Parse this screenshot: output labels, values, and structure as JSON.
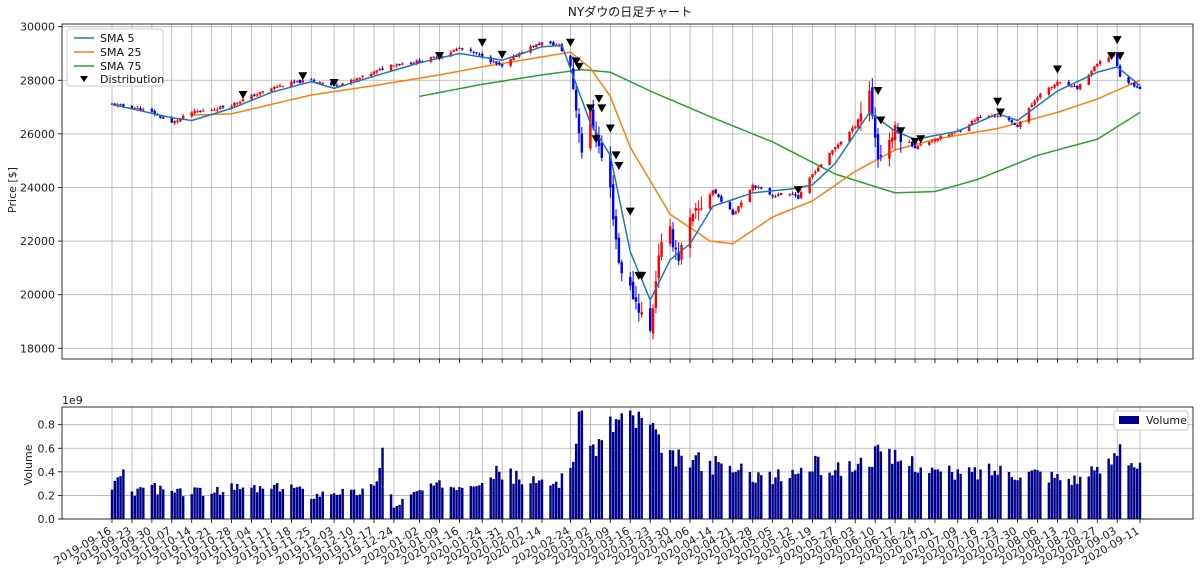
{
  "chart_data": [
    {
      "type": "candlestick",
      "title": "NYダウの日足チャート",
      "ylabel": "Price [$]",
      "ylim": [
        17600,
        30100
      ],
      "yticks": [
        18000,
        20000,
        22000,
        24000,
        26000,
        28000,
        30000
      ],
      "grid": true,
      "legend_position": "top-left",
      "series_names": {
        "sma5": "SMA 5",
        "sma25": "SMA 25",
        "sma75": "SMA 75",
        "distribution": "Distribution"
      },
      "colors": {
        "up": "#ff0000",
        "down": "#0000ff",
        "sma5": "#1f77b4",
        "sma25": "#ff7f0e",
        "sma75": "#2ca02c",
        "distribution": "#000000"
      },
      "close_anchors": [
        [
          "2019-09-16",
          27100
        ],
        [
          "2019-09-23",
          27000
        ],
        [
          "2019-09-30",
          26800
        ],
        [
          "2019-10-07",
          26400
        ],
        [
          "2019-10-14",
          26800
        ],
        [
          "2019-10-21",
          26900
        ],
        [
          "2019-10-28",
          27100
        ],
        [
          "2019-11-04",
          27400
        ],
        [
          "2019-11-11",
          27700
        ],
        [
          "2019-11-18",
          27900
        ],
        [
          "2019-11-25",
          28000
        ],
        [
          "2019-12-03",
          27800
        ],
        [
          "2019-12-10",
          28000
        ],
        [
          "2019-12-17",
          28300
        ],
        [
          "2019-12-24",
          28600
        ],
        [
          "2020-01-02",
          28700
        ],
        [
          "2020-01-09",
          28900
        ],
        [
          "2020-01-16",
          29200
        ],
        [
          "2020-01-24",
          28900
        ],
        [
          "2020-01-31",
          28500
        ],
        [
          "2020-02-07",
          29100
        ],
        [
          "2020-02-14",
          29400
        ],
        [
          "2020-02-20",
          29300
        ],
        [
          "2020-02-24",
          28500
        ],
        [
          "2020-02-28",
          25400
        ],
        [
          "2020-03-02",
          26700
        ],
        [
          "2020-03-09",
          23900
        ],
        [
          "2020-03-12",
          21200
        ],
        [
          "2020-03-16",
          20200
        ],
        [
          "2020-03-23",
          18600
        ],
        [
          "2020-03-26",
          21600
        ],
        [
          "2020-03-30",
          22300
        ],
        [
          "2020-04-02",
          21400
        ],
        [
          "2020-04-06",
          22700
        ],
        [
          "2020-04-14",
          23900
        ],
        [
          "2020-04-21",
          23000
        ],
        [
          "2020-04-28",
          24100
        ],
        [
          "2020-05-05",
          23700
        ],
        [
          "2020-05-12",
          23800
        ],
        [
          "2020-05-14",
          23600
        ],
        [
          "2020-05-19",
          24500
        ],
        [
          "2020-05-27",
          25500
        ],
        [
          "2020-06-03",
          26300
        ],
        [
          "2020-06-08",
          27600
        ],
        [
          "2020-06-11",
          25100
        ],
        [
          "2020-06-17",
          26100
        ],
        [
          "2020-06-24",
          25500
        ],
        [
          "2020-07-01",
          25800
        ],
        [
          "2020-07-09",
          26100
        ],
        [
          "2020-07-16",
          26600
        ],
        [
          "2020-07-23",
          26700
        ],
        [
          "2020-07-30",
          26300
        ],
        [
          "2020-08-06",
          27400
        ],
        [
          "2020-08-13",
          27900
        ],
        [
          "2020-08-20",
          27700
        ],
        [
          "2020-08-27",
          28600
        ],
        [
          "2020-09-02",
          29000
        ],
        [
          "2020-09-04",
          28100
        ],
        [
          "2020-09-11",
          27700
        ]
      ],
      "sma5_anchors": [
        [
          "2019-09-16",
          27100
        ],
        [
          "2019-10-07",
          26600
        ],
        [
          "2019-10-14",
          26500
        ],
        [
          "2019-10-28",
          26950
        ],
        [
          "2019-11-11",
          27550
        ],
        [
          "2019-11-25",
          27950
        ],
        [
          "2019-12-03",
          27700
        ],
        [
          "2019-12-17",
          28150
        ],
        [
          "2020-01-02",
          28650
        ],
        [
          "2020-01-16",
          29000
        ],
        [
          "2020-01-31",
          28750
        ],
        [
          "2020-02-14",
          29250
        ],
        [
          "2020-02-21",
          29300
        ],
        [
          "2020-03-02",
          26400
        ],
        [
          "2020-03-09",
          25200
        ],
        [
          "2020-03-16",
          21600
        ],
        [
          "2020-03-23",
          19800
        ],
        [
          "2020-03-30",
          21300
        ],
        [
          "2020-04-06",
          21900
        ],
        [
          "2020-04-14",
          23300
        ],
        [
          "2020-04-28",
          23800
        ],
        [
          "2020-05-12",
          23950
        ],
        [
          "2020-05-19",
          24100
        ],
        [
          "2020-05-27",
          24900
        ],
        [
          "2020-06-08",
          26800
        ],
        [
          "2020-06-17",
          26100
        ],
        [
          "2020-06-24",
          25800
        ],
        [
          "2020-07-09",
          26100
        ],
        [
          "2020-07-23",
          26750
        ],
        [
          "2020-07-30",
          26500
        ],
        [
          "2020-08-13",
          27600
        ],
        [
          "2020-08-27",
          28300
        ],
        [
          "2020-09-03",
          28500
        ],
        [
          "2020-09-11",
          27800
        ]
      ],
      "sma25_anchors": [
        [
          "2019-10-14",
          26700
        ],
        [
          "2019-10-28",
          26750
        ],
        [
          "2019-11-11",
          27100
        ],
        [
          "2019-11-25",
          27450
        ],
        [
          "2019-12-17",
          27800
        ],
        [
          "2020-01-09",
          28200
        ],
        [
          "2020-01-24",
          28500
        ],
        [
          "2020-02-07",
          28750
        ],
        [
          "2020-02-24",
          29050
        ],
        [
          "2020-03-02",
          28450
        ],
        [
          "2020-03-09",
          27400
        ],
        [
          "2020-03-16",
          25500
        ],
        [
          "2020-03-30",
          23000
        ],
        [
          "2020-04-13",
          22000
        ],
        [
          "2020-04-21",
          21900
        ],
        [
          "2020-05-05",
          22900
        ],
        [
          "2020-05-19",
          23500
        ],
        [
          "2020-06-03",
          24600
        ],
        [
          "2020-06-17",
          25400
        ],
        [
          "2020-07-01",
          25800
        ],
        [
          "2020-07-23",
          26200
        ],
        [
          "2020-08-13",
          26800
        ],
        [
          "2020-08-27",
          27300
        ],
        [
          "2020-09-11",
          28000
        ]
      ],
      "sma75_anchors": [
        [
          "2020-01-02",
          27400
        ],
        [
          "2020-01-24",
          27850
        ],
        [
          "2020-02-14",
          28200
        ],
        [
          "2020-02-28",
          28400
        ],
        [
          "2020-03-09",
          28300
        ],
        [
          "2020-03-23",
          27600
        ],
        [
          "2020-04-14",
          26600
        ],
        [
          "2020-05-05",
          25700
        ],
        [
          "2020-05-27",
          24500
        ],
        [
          "2020-06-17",
          23800
        ],
        [
          "2020-07-01",
          23850
        ],
        [
          "2020-07-16",
          24300
        ],
        [
          "2020-08-06",
          25200
        ],
        [
          "2020-08-27",
          25800
        ],
        [
          "2020-09-11",
          26800
        ]
      ],
      "distribution_days": [
        [
          "2019-11-01",
          27450
        ],
        [
          "2019-11-22",
          28150
        ],
        [
          "2019-12-03",
          27900
        ],
        [
          "2020-01-09",
          28900
        ],
        [
          "2020-01-24",
          29400
        ],
        [
          "2020-01-31",
          28950
        ],
        [
          "2020-02-24",
          29400
        ],
        [
          "2020-02-26",
          28700
        ],
        [
          "2020-02-27",
          28500
        ],
        [
          "2020-03-02",
          26950
        ],
        [
          "2020-03-04",
          25800
        ],
        [
          "2020-03-05",
          27300
        ],
        [
          "2020-03-06",
          26950
        ],
        [
          "2020-03-09",
          26200
        ],
        [
          "2020-03-11",
          25200
        ],
        [
          "2020-03-12",
          24800
        ],
        [
          "2020-03-16",
          23100
        ],
        [
          "2020-03-19",
          20700
        ],
        [
          "2020-03-20",
          20700
        ],
        [
          "2020-05-14",
          23900
        ],
        [
          "2020-06-11",
          27600
        ],
        [
          "2020-06-12",
          26500
        ],
        [
          "2020-06-19",
          26100
        ],
        [
          "2020-06-24",
          25700
        ],
        [
          "2020-06-26",
          25800
        ],
        [
          "2020-07-23",
          27200
        ],
        [
          "2020-07-24",
          26800
        ],
        [
          "2020-08-13",
          28400
        ],
        [
          "2020-09-01",
          28900
        ],
        [
          "2020-09-03",
          29500
        ],
        [
          "2020-09-04",
          28900
        ]
      ]
    },
    {
      "type": "bar",
      "ylabel": "Volume",
      "scale_label": "1e9",
      "ylim": [
        0,
        0.95
      ],
      "yticks": [
        0.0,
        0.2,
        0.4,
        0.6,
        0.8
      ],
      "grid": true,
      "legend_position": "top-right",
      "series_name": "Volume",
      "color": "#00008b",
      "volume_anchors": [
        [
          "2019-09-16",
          0.22
        ],
        [
          "2019-09-20",
          0.49
        ],
        [
          "2019-09-23",
          0.21
        ],
        [
          "2019-09-27",
          0.29
        ],
        [
          "2019-10-07",
          0.22
        ],
        [
          "2019-10-14",
          0.24
        ],
        [
          "2019-10-21",
          0.22
        ],
        [
          "2019-10-28",
          0.26
        ],
        [
          "2019-11-04",
          0.26
        ],
        [
          "2019-11-11",
          0.25
        ],
        [
          "2019-11-18",
          0.28
        ],
        [
          "2019-11-25",
          0.2
        ],
        [
          "2019-12-03",
          0.24
        ],
        [
          "2019-12-10",
          0.22
        ],
        [
          "2019-12-17",
          0.27
        ],
        [
          "2019-12-20",
          0.59
        ],
        [
          "2019-12-24",
          0.09
        ],
        [
          "2019-12-27",
          0.16
        ],
        [
          "2020-01-02",
          0.24
        ],
        [
          "2020-01-09",
          0.28
        ],
        [
          "2020-01-16",
          0.3
        ],
        [
          "2020-01-24",
          0.35
        ],
        [
          "2020-01-31",
          0.4
        ],
        [
          "2020-02-07",
          0.33
        ],
        [
          "2020-02-14",
          0.3
        ],
        [
          "2020-02-20",
          0.32
        ],
        [
          "2020-02-24",
          0.45
        ],
        [
          "2020-02-28",
          0.9
        ],
        [
          "2020-03-02",
          0.62
        ],
        [
          "2020-03-06",
          0.65
        ],
        [
          "2020-03-09",
          0.8
        ],
        [
          "2020-03-12",
          0.86
        ],
        [
          "2020-03-16",
          0.86
        ],
        [
          "2020-03-20",
          0.83
        ],
        [
          "2020-03-23",
          0.78
        ],
        [
          "2020-03-27",
          0.56
        ],
        [
          "2020-03-30",
          0.52
        ],
        [
          "2020-04-06",
          0.5
        ],
        [
          "2020-04-14",
          0.46
        ],
        [
          "2020-04-21",
          0.42
        ],
        [
          "2020-04-28",
          0.38
        ],
        [
          "2020-05-05",
          0.35
        ],
        [
          "2020-05-12",
          0.38
        ],
        [
          "2020-05-19",
          0.46
        ],
        [
          "2020-05-27",
          0.42
        ],
        [
          "2020-06-03",
          0.45
        ],
        [
          "2020-06-10",
          0.55
        ],
        [
          "2020-06-17",
          0.5
        ],
        [
          "2020-06-24",
          0.48
        ],
        [
          "2020-07-01",
          0.4
        ],
        [
          "2020-07-09",
          0.38
        ],
        [
          "2020-07-16",
          0.4
        ],
        [
          "2020-07-23",
          0.42
        ],
        [
          "2020-07-30",
          0.4
        ],
        [
          "2020-08-06",
          0.4
        ],
        [
          "2020-08-13",
          0.36
        ],
        [
          "2020-08-20",
          0.34
        ],
        [
          "2020-08-27",
          0.4
        ],
        [
          "2020-09-01",
          0.5
        ],
        [
          "2020-09-04",
          0.68
        ],
        [
          "2020-09-08",
          0.5
        ],
        [
          "2020-09-11",
          0.43
        ]
      ]
    }
  ],
  "x_axis": {
    "start_date": "2019-09-16",
    "end_date": "2020-09-11",
    "tick_labels": [
      "2019-09-16",
      "2019-09-23",
      "2019-09-30",
      "2019-10-07",
      "2019-10-14",
      "2019-10-21",
      "2019-10-28",
      "2019-11-04",
      "2019-11-11",
      "2019-11-18",
      "2019-11-25",
      "2019-12-03",
      "2019-12-10",
      "2019-12-17",
      "2019-12-24",
      "2020-01-02",
      "2020-01-09",
      "2020-01-16",
      "2020-01-24",
      "2020-01-31",
      "2020-02-07",
      "2020-02-14",
      "2020-02-24",
      "2020-03-02",
      "2020-03-09",
      "2020-03-16",
      "2020-03-23",
      "2020-03-30",
      "2020-04-06",
      "2020-04-14",
      "2020-04-21",
      "2020-04-28",
      "2020-05-05",
      "2020-05-12",
      "2020-05-19",
      "2020-05-27",
      "2020-06-03",
      "2020-06-10",
      "2020-06-17",
      "2020-06-24",
      "2020-07-01",
      "2020-07-09",
      "2020-07-16",
      "2020-07-23",
      "2020-07-30",
      "2020-08-06",
      "2020-08-13",
      "2020-08-20",
      "2020-08-27",
      "2020-09-03",
      "2020-09-11"
    ]
  }
}
